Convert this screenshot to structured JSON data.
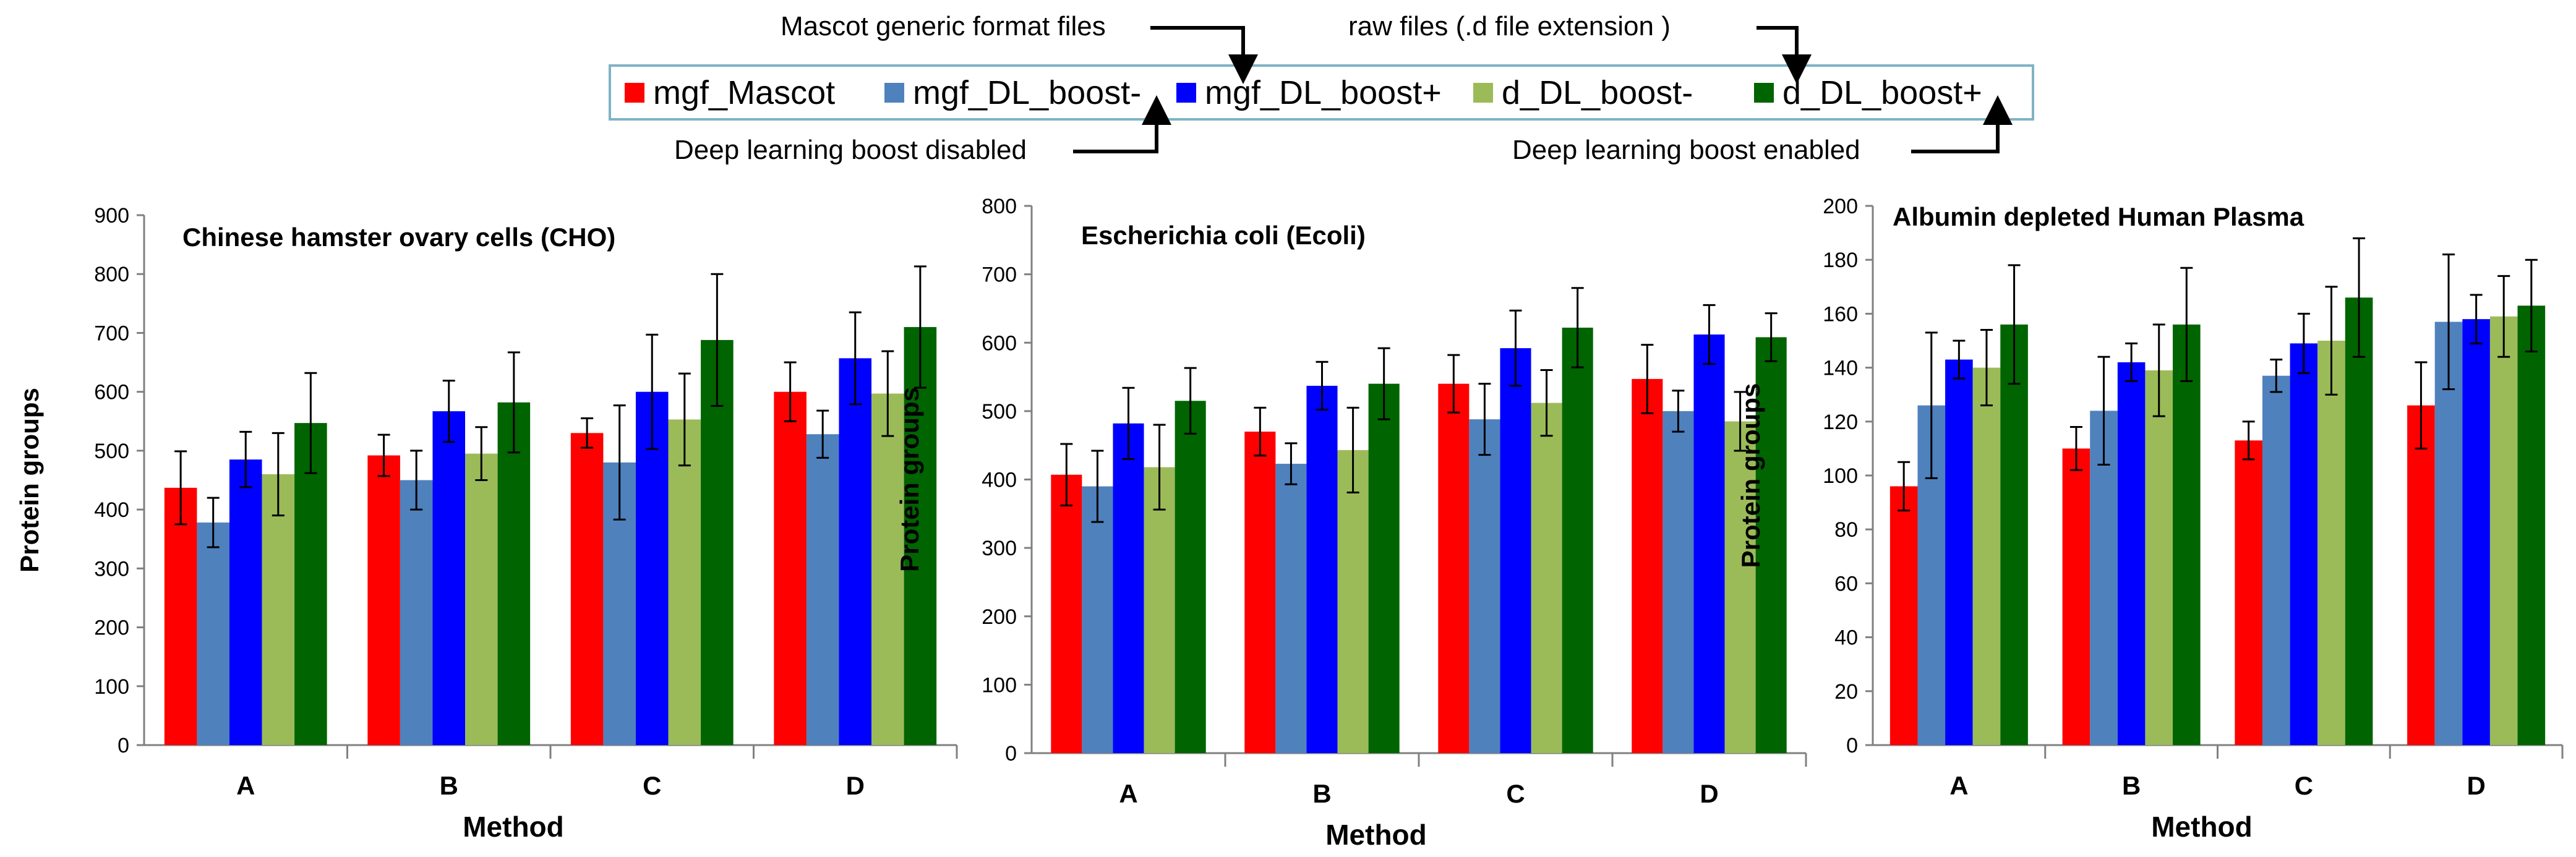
{
  "legend": {
    "items": [
      {
        "name": "mgf_Mascot",
        "color": "#ff0000"
      },
      {
        "name": "mgf_DL_boost-",
        "color": "#4f81bd"
      },
      {
        "name": "mgf_DL_boost+",
        "color": "#0000ff"
      },
      {
        "name": "d_DL_boost-",
        "color": "#9bbb59"
      },
      {
        "name": "d_DL_boost+",
        "color": "#006400"
      }
    ]
  },
  "annotations": {
    "mascot_generic": "Mascot generic format files",
    "raw_files": "raw files (.d file extension )",
    "dl_disabled": "Deep learning boost disabled",
    "dl_enabled": "Deep learning boost enabled"
  },
  "chart_data": [
    {
      "type": "bar",
      "title": "Chinese hamster ovary cells (CHO)",
      "xlabel": "Method",
      "ylabel": "Protein groups",
      "categories": [
        "A",
        "B",
        "C",
        "D"
      ],
      "ylim": [
        0,
        900
      ],
      "yticks": [
        0,
        100,
        200,
        300,
        400,
        500,
        600,
        700,
        800,
        900
      ],
      "series": [
        {
          "name": "mgf_Mascot",
          "values": [
            437,
            492,
            530,
            600
          ],
          "errors": [
            62,
            35,
            25,
            50
          ]
        },
        {
          "name": "mgf_DL_boost-",
          "values": [
            378,
            450,
            480,
            528
          ],
          "errors": [
            42,
            50,
            97,
            40
          ]
        },
        {
          "name": "mgf_DL_boost+",
          "values": [
            485,
            567,
            600,
            657
          ],
          "errors": [
            47,
            52,
            97,
            78
          ]
        },
        {
          "name": "d_DL_boost-",
          "values": [
            460,
            495,
            553,
            597
          ],
          "errors": [
            70,
            45,
            78,
            72
          ]
        },
        {
          "name": "d_DL_boost+",
          "values": [
            547,
            582,
            688,
            710
          ],
          "errors": [
            85,
            85,
            112,
            103
          ]
        }
      ]
    },
    {
      "type": "bar",
      "title": "Escherichia coli (Ecoli)",
      "xlabel": "Method",
      "ylabel": "Protein groups",
      "categories": [
        "A",
        "B",
        "C",
        "D"
      ],
      "ylim": [
        0,
        800
      ],
      "yticks": [
        0,
        100,
        200,
        300,
        400,
        500,
        600,
        700,
        800
      ],
      "series": [
        {
          "name": "mgf_Mascot",
          "values": [
            407,
            470,
            540,
            547
          ],
          "errors": [
            45,
            35,
            42,
            50
          ]
        },
        {
          "name": "mgf_DL_boost-",
          "values": [
            390,
            423,
            488,
            500
          ],
          "errors": [
            52,
            30,
            52,
            30
          ]
        },
        {
          "name": "mgf_DL_boost+",
          "values": [
            482,
            537,
            592,
            612
          ],
          "errors": [
            52,
            35,
            55,
            43
          ]
        },
        {
          "name": "d_DL_boost-",
          "values": [
            418,
            443,
            512,
            485
          ],
          "errors": [
            62,
            62,
            48,
            43
          ]
        },
        {
          "name": "d_DL_boost+",
          "values": [
            515,
            540,
            622,
            608
          ],
          "errors": [
            48,
            52,
            58,
            35
          ]
        }
      ]
    },
    {
      "type": "bar",
      "title": "Albumin depleted Human Plasma",
      "xlabel": "Method",
      "ylabel": "Protein groups",
      "categories": [
        "A",
        "B",
        "C",
        "D"
      ],
      "ylim": [
        0,
        200
      ],
      "yticks": [
        0,
        20,
        40,
        60,
        80,
        100,
        120,
        140,
        160,
        180,
        200
      ],
      "series": [
        {
          "name": "mgf_Mascot",
          "values": [
            96,
            110,
            113,
            126
          ],
          "errors": [
            9,
            8,
            7,
            16
          ]
        },
        {
          "name": "mgf_DL_boost-",
          "values": [
            126,
            124,
            137,
            157
          ],
          "errors": [
            27,
            20,
            6,
            25
          ]
        },
        {
          "name": "mgf_DL_boost+",
          "values": [
            143,
            142,
            149,
            158
          ],
          "errors": [
            7,
            7,
            11,
            9
          ]
        },
        {
          "name": "d_DL_boost-",
          "values": [
            140,
            139,
            150,
            159
          ],
          "errors": [
            14,
            17,
            20,
            15
          ]
        },
        {
          "name": "d_DL_boost+",
          "values": [
            156,
            156,
            166,
            163
          ],
          "errors": [
            22,
            21,
            22,
            17
          ]
        }
      ]
    }
  ]
}
